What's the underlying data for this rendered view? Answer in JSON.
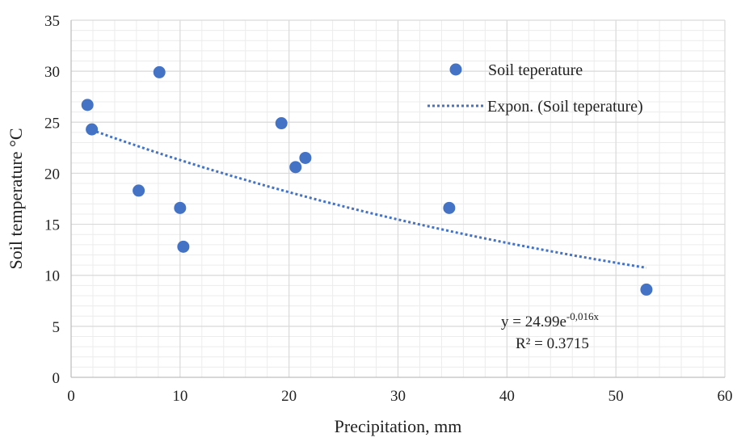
{
  "chart_data": {
    "type": "scatter",
    "xlabel": "Precipitation, mm",
    "ylabel": "Soil temperature °C",
    "xlim": [
      0,
      60
    ],
    "ylim": [
      0,
      35
    ],
    "x_ticks": [
      0,
      10,
      20,
      30,
      40,
      50,
      60
    ],
    "y_ticks": [
      0,
      5,
      10,
      15,
      20,
      25,
      30,
      35
    ],
    "grid": "major and minor",
    "legend_position": "top-right",
    "colors": {
      "marker": "#4472C4",
      "trendline": "#4472C4",
      "grid_major": "#d9d9d9",
      "grid_minor": "#ececec"
    },
    "series": [
      {
        "name": "Soil teperature",
        "points": [
          {
            "x": 1.5,
            "y": 26.7
          },
          {
            "x": 1.9,
            "y": 24.3
          },
          {
            "x": 6.2,
            "y": 18.3
          },
          {
            "x": 8.1,
            "y": 29.9
          },
          {
            "x": 10.0,
            "y": 16.6
          },
          {
            "x": 10.3,
            "y": 12.8
          },
          {
            "x": 19.3,
            "y": 24.9
          },
          {
            "x": 20.6,
            "y": 20.6
          },
          {
            "x": 21.5,
            "y": 21.5
          },
          {
            "x": 34.7,
            "y": 16.6
          },
          {
            "x": 52.8,
            "y": 8.6
          }
        ]
      }
    ],
    "trendline": {
      "name": "Expon. (Soil teperature)",
      "type": "exponential",
      "a": 24.99,
      "b": -0.016,
      "x_range": [
        1.9,
        52.8
      ],
      "style": "dotted",
      "equation_prefix": "y = 24.99e",
      "equation_exponent": "-0,016x",
      "r_squared_label": "R² = 0.3715"
    }
  }
}
